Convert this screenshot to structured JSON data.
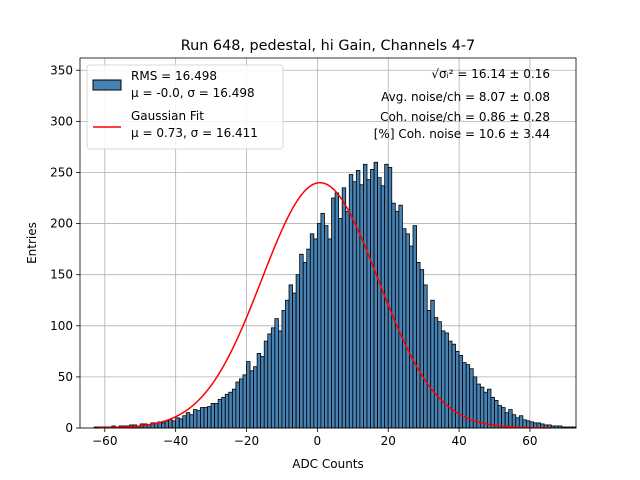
{
  "chart_data": {
    "type": "bar",
    "title": "Run 648, pedestal, hi Gain, Channels 4-7",
    "xlabel": "ADC Counts",
    "ylabel": "Entries",
    "xlim": [
      -67,
      73
    ],
    "ylim": [
      0,
      362
    ],
    "xticks": [
      -60,
      -40,
      -20,
      0,
      20,
      40,
      60
    ],
    "yticks": [
      0,
      50,
      100,
      150,
      200,
      250,
      300,
      350
    ],
    "grid": true,
    "legend_position": "top-left",
    "bin_width": 1,
    "bin_start": -63,
    "histogram": {
      "name": "RMS = 16.498",
      "sublabel": "μ = -0.0, σ = 16.498",
      "color": "#4682b4",
      "edge_color": "#000000",
      "counts": [
        1,
        1,
        1,
        1,
        1,
        2,
        1,
        2,
        2,
        2,
        3,
        3,
        2,
        4,
        4,
        3,
        5,
        5,
        6,
        5,
        7,
        8,
        7,
        10,
        9,
        12,
        15,
        13,
        18,
        17,
        20,
        20,
        21,
        24,
        24,
        28,
        30,
        33,
        35,
        38,
        45,
        48,
        52,
        65,
        56,
        60,
        73,
        70,
        85,
        92,
        98,
        107,
        95,
        115,
        125,
        140,
        132,
        150,
        170,
        162,
        175,
        190,
        185,
        200,
        210,
        198,
        185,
        225,
        230,
        205,
        235,
        212,
        248,
        241,
        252,
        238,
        258,
        243,
        253,
        260,
        245,
        237,
        258,
        255,
        220,
        212,
        218,
        195,
        190,
        178,
        198,
        162,
        155,
        140,
        115,
        125,
        108,
        104,
        95,
        93,
        85,
        82,
        75,
        71,
        64,
        62,
        58,
        50,
        43,
        40,
        35,
        38,
        30,
        27,
        22,
        20,
        15,
        18,
        13,
        10,
        12,
        8,
        7,
        6,
        5,
        5,
        4,
        3,
        3,
        2,
        2,
        2,
        1,
        1,
        1,
        1
      ]
    },
    "fit": {
      "name": "Gaussian Fit",
      "sublabel": "μ = 0.73, σ = 16.411",
      "color": "#ff0000",
      "mu": 0.73,
      "sigma": 16.411,
      "amplitude": 240,
      "x_range": [
        -62,
        66
      ]
    },
    "annotations": [
      {
        "prefix": "",
        "text": " = 16.14 ± 0.16"
      },
      {
        "prefix": "",
        "text": "Avg. noise/ch = 8.07 ± 0.08"
      },
      {
        "prefix": "",
        "text": "Coh. noise/ch = 0.86 ± 0.28"
      },
      {
        "prefix": "",
        "text": "[%] Coh. noise = 10.6 ± 3.44"
      }
    ],
    "annotation_symbol": "√σᵢ²"
  }
}
